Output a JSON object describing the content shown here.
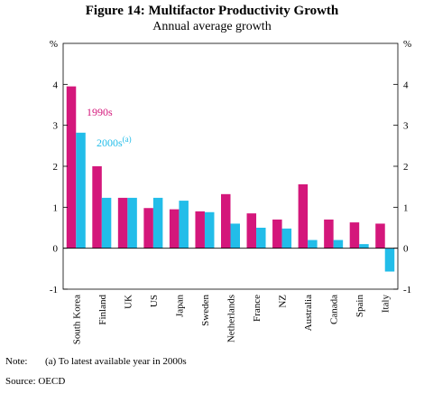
{
  "title": "Figure 14: Multifactor Productivity Growth",
  "subtitle": "Annual average growth",
  "note_label": "Note:",
  "note_text": "(a) To latest available year in 2000s",
  "source": "Source:  OECD",
  "colors": {
    "series_1990s": "#d4177b",
    "series_2000s": "#22bde9"
  },
  "chart_data": {
    "type": "bar",
    "unit_left": "%",
    "unit_right": "%",
    "ylim": [
      -1,
      5
    ],
    "yticks": [
      -1,
      0,
      1,
      2,
      3,
      4
    ],
    "categories": [
      "South Korea",
      "Finland",
      "UK",
      "US",
      "Japan",
      "Sweden",
      "Netherlands",
      "France",
      "NZ",
      "Australia",
      "Canada",
      "Spain",
      "Italy"
    ],
    "series": [
      {
        "name": "1990s",
        "label_text": "1990s",
        "label_sup": "",
        "values": [
          3.95,
          2.0,
          1.23,
          0.98,
          0.95,
          0.9,
          1.32,
          0.85,
          0.7,
          1.56,
          0.7,
          0.63,
          0.6
        ]
      },
      {
        "name": "2000s(a)",
        "label_text": "2000s",
        "label_sup": "(a)",
        "values": [
          2.82,
          1.23,
          1.23,
          1.23,
          1.16,
          0.88,
          0.6,
          0.5,
          0.48,
          0.2,
          0.2,
          0.1,
          -0.57
        ]
      }
    ]
  }
}
